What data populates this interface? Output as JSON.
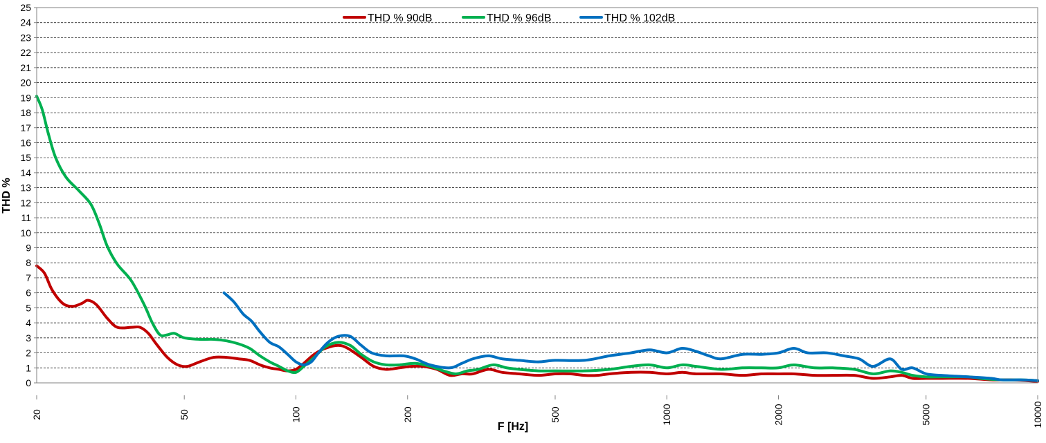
{
  "chart_data": {
    "type": "line",
    "title": "",
    "xlabel": "F [Hz]",
    "ylabel": "THD %",
    "x_scale": "log",
    "xlim": [
      20,
      10000
    ],
    "ylim": [
      0,
      25
    ],
    "grid": true,
    "legend_position": "top",
    "x_ticks": [
      "20",
      "50",
      "100",
      "200",
      "500",
      "1000",
      "2000",
      "5000",
      "10000"
    ],
    "x_tick_values": [
      20,
      50,
      100,
      200,
      500,
      1000,
      2000,
      5000,
      10000
    ],
    "y_ticks": [
      "0",
      "1",
      "2",
      "3",
      "4",
      "5",
      "6",
      "7",
      "8",
      "9",
      "10",
      "11",
      "12",
      "13",
      "14",
      "15",
      "16",
      "17",
      "18",
      "19",
      "20",
      "21",
      "22",
      "23",
      "24",
      "25"
    ],
    "series": [
      {
        "name": "THD % 90dB",
        "color": "#c00000",
        "points": [
          [
            20,
            7.8
          ],
          [
            21,
            7.3
          ],
          [
            22,
            6.2
          ],
          [
            23.5,
            5.3
          ],
          [
            25,
            5.1
          ],
          [
            26.5,
            5.3
          ],
          [
            27.5,
            5.5
          ],
          [
            29,
            5.2
          ],
          [
            31,
            4.3
          ],
          [
            33,
            3.7
          ],
          [
            36,
            3.7
          ],
          [
            38,
            3.7
          ],
          [
            40,
            3.3
          ],
          [
            42,
            2.6
          ],
          [
            45,
            1.7
          ],
          [
            48,
            1.2
          ],
          [
            51,
            1.1
          ],
          [
            55,
            1.4
          ],
          [
            60,
            1.7
          ],
          [
            65,
            1.7
          ],
          [
            70,
            1.6
          ],
          [
            75,
            1.5
          ],
          [
            80,
            1.2
          ],
          [
            85,
            1.0
          ],
          [
            90,
            0.9
          ],
          [
            95,
            0.8
          ],
          [
            100,
            0.9
          ],
          [
            105,
            1.3
          ],
          [
            112,
            1.9
          ],
          [
            120,
            2.3
          ],
          [
            130,
            2.5
          ],
          [
            138,
            2.3
          ],
          [
            150,
            1.7
          ],
          [
            162,
            1.1
          ],
          [
            175,
            0.9
          ],
          [
            190,
            1.0
          ],
          [
            205,
            1.1
          ],
          [
            220,
            1.1
          ],
          [
            240,
            0.9
          ],
          [
            260,
            0.5
          ],
          [
            280,
            0.6
          ],
          [
            300,
            0.6
          ],
          [
            330,
            0.9
          ],
          [
            360,
            0.7
          ],
          [
            400,
            0.6
          ],
          [
            450,
            0.5
          ],
          [
            500,
            0.6
          ],
          [
            550,
            0.6
          ],
          [
            600,
            0.5
          ],
          [
            650,
            0.5
          ],
          [
            700,
            0.6
          ],
          [
            800,
            0.7
          ],
          [
            900,
            0.7
          ],
          [
            1000,
            0.6
          ],
          [
            1100,
            0.7
          ],
          [
            1200,
            0.6
          ],
          [
            1400,
            0.6
          ],
          [
            1600,
            0.5
          ],
          [
            1800,
            0.6
          ],
          [
            2000,
            0.6
          ],
          [
            2200,
            0.6
          ],
          [
            2500,
            0.5
          ],
          [
            2800,
            0.5
          ],
          [
            3200,
            0.5
          ],
          [
            3600,
            0.3
          ],
          [
            4000,
            0.4
          ],
          [
            4300,
            0.5
          ],
          [
            4600,
            0.3
          ],
          [
            5000,
            0.3
          ],
          [
            5500,
            0.3
          ],
          [
            6500,
            0.3
          ],
          [
            7500,
            0.2
          ],
          [
            8500,
            0.2
          ],
          [
            10000,
            0.1
          ]
        ]
      },
      {
        "name": "THD % 96dB",
        "color": "#00b050",
        "points": [
          [
            20,
            19.1
          ],
          [
            20.7,
            18.2
          ],
          [
            21.5,
            16.6
          ],
          [
            22.5,
            15.0
          ],
          [
            24,
            13.7
          ],
          [
            26,
            12.8
          ],
          [
            28,
            11.9
          ],
          [
            29.5,
            10.6
          ],
          [
            31,
            9.1
          ],
          [
            33,
            7.9
          ],
          [
            36,
            6.8
          ],
          [
            39,
            5.2
          ],
          [
            41,
            4.0
          ],
          [
            43,
            3.2
          ],
          [
            45,
            3.2
          ],
          [
            47,
            3.3
          ],
          [
            50,
            3.0
          ],
          [
            55,
            2.9
          ],
          [
            60,
            2.9
          ],
          [
            65,
            2.8
          ],
          [
            70,
            2.6
          ],
          [
            75,
            2.3
          ],
          [
            80,
            1.8
          ],
          [
            85,
            1.4
          ],
          [
            90,
            1.1
          ],
          [
            95,
            0.8
          ],
          [
            100,
            0.7
          ],
          [
            105,
            1.1
          ],
          [
            112,
            1.7
          ],
          [
            120,
            2.4
          ],
          [
            130,
            2.7
          ],
          [
            140,
            2.5
          ],
          [
            150,
            1.9
          ],
          [
            162,
            1.4
          ],
          [
            175,
            1.2
          ],
          [
            190,
            1.2
          ],
          [
            210,
            1.3
          ],
          [
            230,
            1.1
          ],
          [
            250,
            0.8
          ],
          [
            270,
            0.6
          ],
          [
            290,
            0.8
          ],
          [
            310,
            0.9
          ],
          [
            340,
            1.2
          ],
          [
            370,
            1.0
          ],
          [
            400,
            0.9
          ],
          [
            450,
            0.8
          ],
          [
            500,
            0.8
          ],
          [
            600,
            0.8
          ],
          [
            700,
            0.9
          ],
          [
            800,
            1.1
          ],
          [
            900,
            1.2
          ],
          [
            1000,
            1.0
          ],
          [
            1100,
            1.2
          ],
          [
            1200,
            1.1
          ],
          [
            1400,
            0.9
          ],
          [
            1600,
            1.0
          ],
          [
            1800,
            1.0
          ],
          [
            2000,
            1.0
          ],
          [
            2200,
            1.2
          ],
          [
            2500,
            1.0
          ],
          [
            2800,
            1.0
          ],
          [
            3200,
            0.9
          ],
          [
            3600,
            0.6
          ],
          [
            4000,
            0.8
          ],
          [
            4300,
            0.7
          ],
          [
            4600,
            0.5
          ],
          [
            5000,
            0.4
          ],
          [
            5500,
            0.4
          ],
          [
            6500,
            0.4
          ],
          [
            7000,
            0.3
          ],
          [
            8000,
            0.2
          ],
          [
            9000,
            0.2
          ],
          [
            10000,
            0.15
          ]
        ]
      },
      {
        "name": "THD % 102dB",
        "color": "#0070c0",
        "points": [
          [
            64,
            6.0
          ],
          [
            68,
            5.4
          ],
          [
            72,
            4.6
          ],
          [
            76,
            4.1
          ],
          [
            80,
            3.4
          ],
          [
            85,
            2.7
          ],
          [
            90,
            2.4
          ],
          [
            95,
            1.9
          ],
          [
            100,
            1.4
          ],
          [
            105,
            1.2
          ],
          [
            110,
            1.4
          ],
          [
            115,
            2.0
          ],
          [
            122,
            2.7
          ],
          [
            130,
            3.1
          ],
          [
            140,
            3.1
          ],
          [
            150,
            2.5
          ],
          [
            160,
            2.0
          ],
          [
            175,
            1.8
          ],
          [
            195,
            1.8
          ],
          [
            210,
            1.6
          ],
          [
            230,
            1.2
          ],
          [
            260,
            1.0
          ],
          [
            280,
            1.3
          ],
          [
            300,
            1.6
          ],
          [
            330,
            1.8
          ],
          [
            360,
            1.6
          ],
          [
            400,
            1.5
          ],
          [
            450,
            1.4
          ],
          [
            500,
            1.5
          ],
          [
            600,
            1.5
          ],
          [
            700,
            1.8
          ],
          [
            800,
            2.0
          ],
          [
            900,
            2.2
          ],
          [
            1000,
            2.0
          ],
          [
            1100,
            2.3
          ],
          [
            1200,
            2.1
          ],
          [
            1300,
            1.8
          ],
          [
            1400,
            1.6
          ],
          [
            1600,
            1.9
          ],
          [
            1800,
            1.9
          ],
          [
            2000,
            2.0
          ],
          [
            2200,
            2.3
          ],
          [
            2400,
            2.0
          ],
          [
            2700,
            2.0
          ],
          [
            3000,
            1.8
          ],
          [
            3300,
            1.6
          ],
          [
            3600,
            1.1
          ],
          [
            4000,
            1.6
          ],
          [
            4300,
            0.9
          ],
          [
            4600,
            1.0
          ],
          [
            5000,
            0.6
          ],
          [
            5500,
            0.5
          ],
          [
            6500,
            0.4
          ],
          [
            7500,
            0.3
          ],
          [
            8000,
            0.2
          ],
          [
            9000,
            0.2
          ],
          [
            10000,
            0.15
          ]
        ]
      }
    ]
  }
}
